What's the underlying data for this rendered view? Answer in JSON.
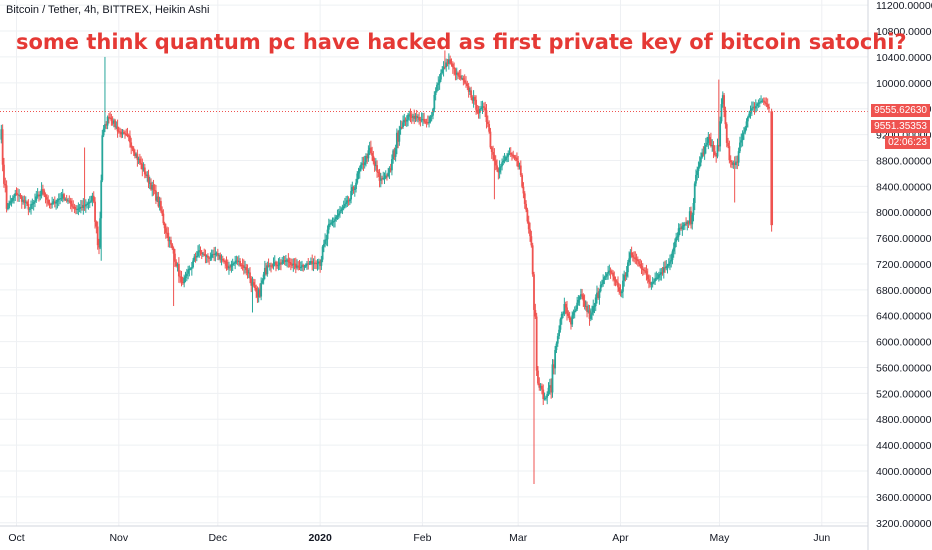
{
  "header": {
    "symbol_line": "Bitcoin / Tether, 4h, BITTREX, Heikin Ashi",
    "headline": "some think quantum pc have hacked as first private key of bitcoin satochi?"
  },
  "price_tags": {
    "last_price": "9555.62630",
    "current_price": "9551.35353",
    "countdown": "02:06:23"
  },
  "colors": {
    "up": "#26a69a",
    "down": "#ef5350",
    "accent": "#e53935",
    "grid": "#eef0f3"
  },
  "chart_data": {
    "type": "candlestick",
    "chart_style": "Heikin Ashi",
    "interval": "4h",
    "y_ticks": [
      3200,
      3600,
      4000,
      4400,
      4800,
      5200,
      5600,
      6000,
      6400,
      6800,
      7200,
      7600,
      8000,
      8400,
      8800,
      9200,
      9600,
      10000,
      10400,
      10800,
      11200
    ],
    "y_tick_labels": [
      "3200.00000",
      "3600.00000",
      "4000.00000",
      "4400.00000",
      "4800.00000",
      "5200.00000",
      "5600.00000",
      "6000.00000",
      "6400.00000",
      "6800.00000",
      "7200.00000",
      "7600.00000",
      "8000.00000",
      "8400.00000",
      "8800.00000",
      "9200.00000",
      "9600.00000",
      "10000.00000",
      "10400.00000",
      "10800.00000",
      "11200.00000"
    ],
    "ylim": [
      3150,
      11280
    ],
    "x_labels": [
      "Oct",
      "Nov",
      "Dec",
      "2020",
      "Feb",
      "Mar",
      "Apr",
      "May",
      "Jun"
    ],
    "x_label_days": [
      0,
      31,
      61,
      92,
      123,
      152,
      183,
      213,
      244
    ],
    "x_range_days": [
      -5,
      258
    ],
    "last_price_line": 9556,
    "anchors": [
      [
        -5,
        9350
      ],
      [
        -3,
        8050
      ],
      [
        0,
        8300
      ],
      [
        4,
        8050
      ],
      [
        8,
        8350
      ],
      [
        10,
        8100
      ],
      [
        14,
        8250
      ],
      [
        18,
        8050
      ],
      [
        21,
        8100
      ],
      [
        23,
        8200
      ],
      [
        25,
        7400
      ],
      [
        26,
        9200
      ],
      [
        28,
        9500
      ],
      [
        31,
        9250
      ],
      [
        34,
        9150
      ],
      [
        37,
        8800
      ],
      [
        40,
        8500
      ],
      [
        43,
        8150
      ],
      [
        46,
        7600
      ],
      [
        48,
        7300
      ],
      [
        50,
        6900
      ],
      [
        52,
        7050
      ],
      [
        55,
        7400
      ],
      [
        58,
        7300
      ],
      [
        61,
        7350
      ],
      [
        64,
        7150
      ],
      [
        67,
        7250
      ],
      [
        70,
        7100
      ],
      [
        73,
        6650
      ],
      [
        76,
        7200
      ],
      [
        79,
        7200
      ],
      [
        82,
        7250
      ],
      [
        85,
        7150
      ],
      [
        88,
        7200
      ],
      [
        92,
        7250
      ],
      [
        95,
        7800
      ],
      [
        98,
        8000
      ],
      [
        101,
        8200
      ],
      [
        104,
        8650
      ],
      [
        107,
        8950
      ],
      [
        110,
        8500
      ],
      [
        113,
        8600
      ],
      [
        116,
        9300
      ],
      [
        119,
        9500
      ],
      [
        122,
        9450
      ],
      [
        125,
        9350
      ],
      [
        127,
        9900
      ],
      [
        129,
        10200
      ],
      [
        131,
        10350
      ],
      [
        133,
        10150
      ],
      [
        135,
        10050
      ],
      [
        137,
        9900
      ],
      [
        140,
        9550
      ],
      [
        142,
        9650
      ],
      [
        144,
        8950
      ],
      [
        146,
        8650
      ],
      [
        149,
        8900
      ],
      [
        152,
        8800
      ],
      [
        154,
        8150
      ],
      [
        156,
        7600
      ],
      [
        158,
        5400
      ],
      [
        160,
        5100
      ],
      [
        162,
        5350
      ],
      [
        164,
        6150
      ],
      [
        166,
        6550
      ],
      [
        168,
        6300
      ],
      [
        171,
        6700
      ],
      [
        174,
        6350
      ],
      [
        177,
        6900
      ],
      [
        180,
        7100
      ],
      [
        183,
        6750
      ],
      [
        186,
        7350
      ],
      [
        189,
        7200
      ],
      [
        192,
        6900
      ],
      [
        195,
        7050
      ],
      [
        198,
        7250
      ],
      [
        201,
        7750
      ],
      [
        204,
        7850
      ],
      [
        207,
        8800
      ],
      [
        210,
        9150
      ],
      [
        212,
        8800
      ],
      [
        214,
        9700
      ],
      [
        216,
        8800
      ],
      [
        218,
        8700
      ],
      [
        220,
        9200
      ],
      [
        222,
        9550
      ],
      [
        224,
        9650
      ],
      [
        226,
        9750
      ],
      [
        228,
        9600
      ]
    ],
    "spikes": [
      {
        "day": 27,
        "high": 10400
      },
      {
        "day": 21,
        "high": 9000
      },
      {
        "day": 26,
        "low": 7250
      },
      {
        "day": 72,
        "low": 6450
      },
      {
        "day": 130,
        "high": 10500
      },
      {
        "day": 157,
        "low": 3800
      },
      {
        "day": 213,
        "high": 10050
      },
      {
        "day": 218,
        "low": 8150
      },
      {
        "day": 145,
        "low": 8200
      },
      {
        "day": 48,
        "low": 6550
      }
    ],
    "final_drop": {
      "open": 9560,
      "close": 7800,
      "high": 9600,
      "low": 7700
    }
  }
}
